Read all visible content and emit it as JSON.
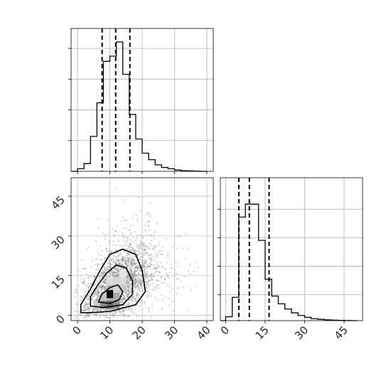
{
  "chart_data": [
    {
      "type": "histogram",
      "panel": "x-marginal",
      "xlim": [
        -2,
        42
      ],
      "grid": true,
      "bin_edges": [
        0,
        2,
        4,
        6,
        8,
        10,
        12,
        14,
        16,
        18,
        20,
        22,
        24,
        26,
        28,
        30,
        32,
        34,
        36,
        38,
        40
      ],
      "counts": [
        0.02,
        0.06,
        0.27,
        0.53,
        0.85,
        0.89,
        1.0,
        0.75,
        0.44,
        0.25,
        0.14,
        0.09,
        0.05,
        0.03,
        0.02,
        0.01,
        0.005,
        0.003,
        0.001,
        0.0
      ],
      "quantile_lines": [
        7.6,
        11.8,
        16.2
      ]
    },
    {
      "type": "scatter",
      "panel": "joint",
      "xlim": [
        -2,
        42
      ],
      "ylim": [
        -2,
        52
      ],
      "x_ticks": [
        "0",
        "10",
        "20",
        "30",
        "40"
      ],
      "y_ticks": [
        "0",
        "15",
        "30",
        "45"
      ],
      "grid": true,
      "density_peak": [
        10,
        8
      ],
      "contour_levels": [
        "inner",
        "middle",
        "outer"
      ]
    },
    {
      "type": "histogram",
      "panel": "y-marginal",
      "xlim": [
        -2,
        52
      ],
      "grid": true,
      "x_ticks": [
        "0",
        "15",
        "30",
        "45"
      ],
      "bin_edges": [
        0,
        2.5,
        5,
        7.5,
        10,
        12.5,
        15,
        17.5,
        20,
        22.5,
        25,
        27.5,
        30,
        32.5,
        35,
        37.5,
        40,
        42.5,
        45,
        47.5,
        50
      ],
      "counts": [
        0.03,
        0.18,
        0.8,
        0.9,
        0.9,
        0.62,
        0.32,
        0.19,
        0.13,
        0.09,
        0.06,
        0.04,
        0.025,
        0.015,
        0.01,
        0.006,
        0.004,
        0.002,
        0.001,
        0.0
      ],
      "quantile_lines": [
        5.0,
        9.0,
        16.5
      ]
    }
  ]
}
